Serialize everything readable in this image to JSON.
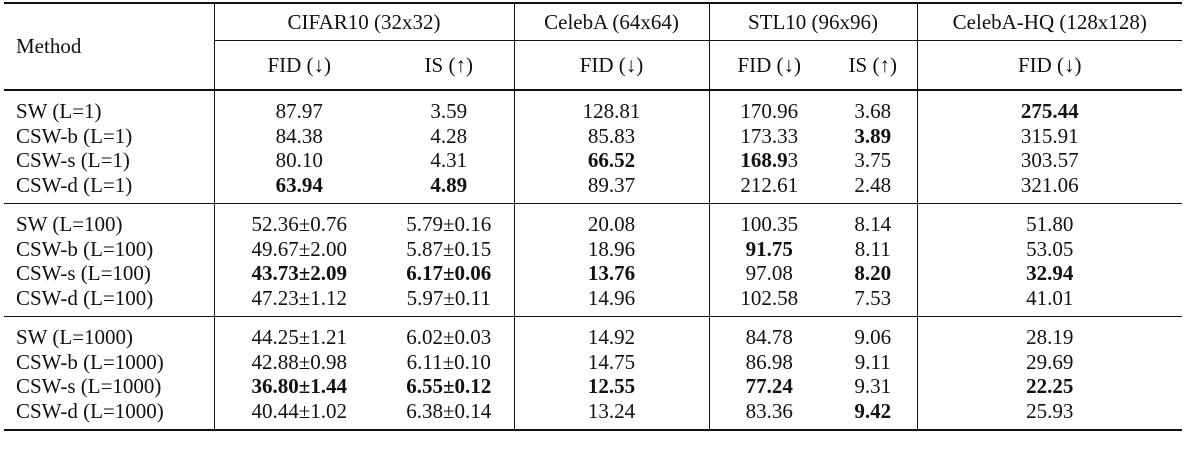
{
  "header": {
    "method": "Method",
    "groups": [
      {
        "name": "CIFAR10 (32x32)",
        "metrics": [
          "FID (↓)",
          "IS (↑)"
        ]
      },
      {
        "name": "CelebA (64x64)",
        "metrics": [
          "FID (↓)"
        ]
      },
      {
        "name": "STL10 (96x96)",
        "metrics": [
          "FID (↓)",
          "IS (↑)"
        ]
      },
      {
        "name": "CelebA-HQ (128x128)",
        "metrics": [
          "FID (↓)"
        ]
      }
    ]
  },
  "sections": [
    {
      "rows": [
        {
          "method": "SW (L=1)",
          "cells": [
            {
              "v": "87.97"
            },
            {
              "v": "3.59"
            },
            {
              "v": "128.81"
            },
            {
              "v": "170.96"
            },
            {
              "v": "3.68"
            },
            {
              "v": "275.44",
              "bold": true
            }
          ]
        },
        {
          "method": "CSW-b (L=1)",
          "cells": [
            {
              "v": "84.38"
            },
            {
              "v": "4.28"
            },
            {
              "v": "85.83"
            },
            {
              "v": "173.33"
            },
            {
              "v": "3.89",
              "bold": true
            },
            {
              "v": "315.91"
            }
          ]
        },
        {
          "method": "CSW-s (L=1)",
          "cells": [
            {
              "v": "80.10"
            },
            {
              "v": "4.31"
            },
            {
              "v": "66.52",
              "bold": true
            },
            {
              "v": "168.9",
              "bold": true,
              "tail": "3"
            },
            {
              "v": "3.75"
            },
            {
              "v": "303.57"
            }
          ]
        },
        {
          "method": "CSW-d (L=1)",
          "cells": [
            {
              "v": "63.94",
              "bold": true
            },
            {
              "v": "4.89",
              "bold": true
            },
            {
              "v": "89.37"
            },
            {
              "v": "212.61"
            },
            {
              "v": "2.48"
            },
            {
              "v": "321.06"
            }
          ]
        }
      ]
    },
    {
      "rows": [
        {
          "method": "SW (L=100)",
          "cells": [
            {
              "v": "52.36±0.76"
            },
            {
              "v": "5.79±0.16"
            },
            {
              "v": "20.08"
            },
            {
              "v": "100.35"
            },
            {
              "v": "8.14"
            },
            {
              "v": "51.80"
            }
          ]
        },
        {
          "method": "CSW-b (L=100)",
          "cells": [
            {
              "v": "49.67±2.00"
            },
            {
              "v": "5.87±0.15"
            },
            {
              "v": "18.96"
            },
            {
              "v": "91.75",
              "bold": true
            },
            {
              "v": "8.11"
            },
            {
              "v": "53.05"
            }
          ]
        },
        {
          "method": "CSW-s (L=100)",
          "cells": [
            {
              "v": "43.73±2.09",
              "bold": true
            },
            {
              "v": "6.17±0.06",
              "bold": true
            },
            {
              "v": "13.76",
              "bold": true
            },
            {
              "v": "97.08"
            },
            {
              "v": "8.20",
              "bold": true
            },
            {
              "v": "32.94",
              "bold": true
            }
          ]
        },
        {
          "method": "CSW-d (L=100)",
          "cells": [
            {
              "v": "47.23±1.12"
            },
            {
              "v": "5.97±0.11"
            },
            {
              "v": "14.96"
            },
            {
              "v": "102.58"
            },
            {
              "v": "7.53"
            },
            {
              "v": "41.01"
            }
          ]
        }
      ]
    },
    {
      "rows": [
        {
          "method": "SW (L=1000)",
          "cells": [
            {
              "v": "44.25±1.21"
            },
            {
              "v": "6.02±0.03"
            },
            {
              "v": "14.92"
            },
            {
              "v": "84.78"
            },
            {
              "v": "9.06"
            },
            {
              "v": "28.19"
            }
          ]
        },
        {
          "method": "CSW-b (L=1000)",
          "cells": [
            {
              "v": "42.88±0.98"
            },
            {
              "v": "6.11±0.10"
            },
            {
              "v": "14.75"
            },
            {
              "v": "86.98"
            },
            {
              "v": "9.11"
            },
            {
              "v": "29.69"
            }
          ]
        },
        {
          "method": "CSW-s (L=1000)",
          "cells": [
            {
              "v": "36.80±1.44",
              "bold": true
            },
            {
              "v": "6.55±0.12",
              "bold": true
            },
            {
              "v": "12.55",
              "bold": true
            },
            {
              "v": "77.24",
              "bold": true
            },
            {
              "v": "9.31"
            },
            {
              "v": "22.25",
              "bold": true
            }
          ]
        },
        {
          "method": "CSW-d (L=1000)",
          "cells": [
            {
              "v": "40.44±1.02"
            },
            {
              "v": "6.38±0.14"
            },
            {
              "v": "13.24"
            },
            {
              "v": "83.36"
            },
            {
              "v": "9.42",
              "bold": true
            },
            {
              "v": "25.93"
            }
          ]
        }
      ]
    }
  ]
}
